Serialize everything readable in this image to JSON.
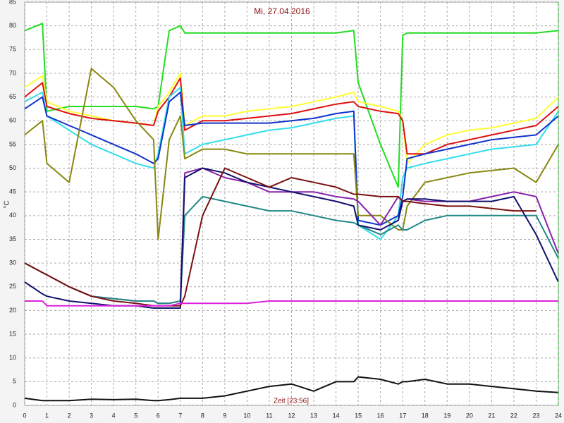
{
  "chart_data": {
    "type": "line",
    "title": "Mi, 27.04.2016",
    "ylabel": "°C",
    "annotation": "Zeit [23:56]",
    "x": [
      0,
      0.8,
      1,
      2,
      3,
      4,
      5,
      5.8,
      6,
      6.5,
      7,
      7.2,
      8,
      9,
      10,
      11,
      12,
      13,
      14,
      14.8,
      15,
      16,
      16.8,
      17,
      17.2,
      18,
      19,
      20,
      21,
      22,
      23,
      24
    ],
    "xlim": [
      0,
      24
    ],
    "ylim": [
      0,
      85
    ],
    "xticks": [
      0,
      1,
      2,
      3,
      4,
      5,
      6,
      7,
      8,
      9,
      10,
      11,
      12,
      13,
      14,
      15,
      16,
      17,
      18,
      19,
      20,
      21,
      22,
      23,
      24
    ],
    "yticks": [
      0,
      5,
      10,
      15,
      20,
      25,
      30,
      35,
      40,
      45,
      50,
      55,
      60,
      65,
      70,
      75,
      80,
      85
    ],
    "grid": true,
    "series": [
      {
        "color": "#22dd22",
        "values": [
          79,
          80.5,
          62,
          63,
          63,
          63,
          63,
          62.5,
          63,
          79,
          80,
          78.5,
          78.5,
          78.5,
          78.5,
          78.5,
          78.5,
          78.5,
          78.5,
          79,
          68,
          55,
          46,
          78,
          78.5,
          78.5,
          78.5,
          78.5,
          78.5,
          78.5,
          78.5,
          79
        ]
      },
      {
        "color": "#ffff33",
        "values": [
          67,
          69.5,
          64,
          62,
          61,
          60,
          59.5,
          59,
          63,
          66,
          70,
          59,
          61,
          61,
          62,
          62.5,
          63,
          64,
          65,
          66,
          64,
          63,
          62,
          60,
          51,
          55,
          57,
          58,
          58.5,
          59.5,
          60.5,
          65
        ]
      },
      {
        "color": "#dd1111",
        "values": [
          65,
          68,
          63,
          61.5,
          60.5,
          60,
          59.5,
          59,
          62,
          65,
          69,
          58,
          60,
          60,
          60.5,
          61,
          61.5,
          62.5,
          63.5,
          64,
          63,
          62,
          61.5,
          60,
          53,
          53,
          55,
          56,
          57,
          58,
          59,
          63
        ]
      },
      {
        "color": "#33ddee",
        "values": [
          64,
          66,
          61,
          58,
          55,
          53,
          51,
          50,
          53,
          65,
          67,
          53,
          55,
          56,
          57,
          58,
          58.5,
          59.5,
          60.5,
          61,
          38,
          35,
          40,
          48,
          50,
          51,
          52,
          53,
          54,
          54.5,
          55,
          62
        ]
      },
      {
        "color": "#1133cc",
        "values": [
          62.5,
          65,
          61,
          59,
          57,
          55,
          53,
          51,
          52,
          64,
          66,
          59,
          59.5,
          59.5,
          59.5,
          59.5,
          60,
          60.5,
          61.5,
          62,
          39,
          38,
          40,
          44,
          52,
          53,
          54,
          55,
          56,
          56.5,
          57,
          61
        ]
      },
      {
        "color": "#888811",
        "values": [
          57,
          60,
          51,
          47,
          71,
          67,
          60,
          56,
          35,
          56,
          61,
          52,
          54,
          54,
          53,
          53,
          53,
          53,
          53,
          53,
          40,
          40,
          37,
          37,
          42,
          47,
          48,
          49,
          49.5,
          50,
          47,
          55
        ]
      },
      {
        "color": "#8822aa",
        "values": [
          30,
          28,
          27.5,
          25,
          23,
          22.5,
          22,
          22,
          21.5,
          21.5,
          22,
          49,
          50,
          48,
          47,
          45,
          45,
          45,
          44,
          43.5,
          43,
          38,
          44,
          43,
          43.5,
          43,
          43,
          43,
          44,
          45,
          44,
          32
        ]
      },
      {
        "color": "#228888",
        "values": [
          30,
          28,
          27.5,
          25,
          23,
          22.5,
          22,
          22,
          21.5,
          21.5,
          22,
          40,
          44,
          43,
          42,
          41,
          41,
          40,
          39,
          38.5,
          38,
          36,
          38,
          37,
          37,
          39,
          40,
          40,
          40,
          40,
          40,
          31
        ]
      },
      {
        "color": "#11116e",
        "values": [
          26,
          23.5,
          23,
          22,
          21.5,
          21,
          21,
          20.5,
          20.5,
          20.5,
          20.5,
          48,
          50,
          49,
          47,
          46,
          45,
          44,
          43,
          42,
          38,
          37,
          39,
          43,
          43.5,
          43.5,
          43,
          43,
          43,
          44,
          36,
          26
        ]
      },
      {
        "color": "#7a1111",
        "values": [
          30,
          28,
          27.5,
          25,
          23,
          22,
          21.5,
          21,
          21,
          21,
          21,
          23,
          40,
          50,
          48,
          46,
          48,
          47,
          46,
          44.5,
          44.5,
          44,
          44,
          43,
          43,
          42.5,
          42,
          42,
          41.5,
          41,
          41,
          null
        ]
      },
      {
        "color": "#dd22dd",
        "values": [
          22,
          22,
          21,
          21,
          21,
          21,
          21,
          21,
          21,
          21,
          21.5,
          21.5,
          21.5,
          21.5,
          21.5,
          22,
          22,
          22,
          22,
          22,
          22,
          22,
          22,
          22,
          22,
          22,
          22,
          22,
          22,
          22,
          22,
          22
        ]
      },
      {
        "color": "#111111",
        "values": [
          1.5,
          1,
          1,
          1,
          1.3,
          1.2,
          1.3,
          1,
          1,
          1.2,
          1.5,
          1.5,
          1.5,
          2,
          3,
          4,
          4.5,
          3,
          5,
          5,
          6,
          5.5,
          4.5,
          5,
          5,
          5.5,
          4.5,
          4.5,
          4,
          3.5,
          3,
          2.7
        ]
      }
    ]
  }
}
